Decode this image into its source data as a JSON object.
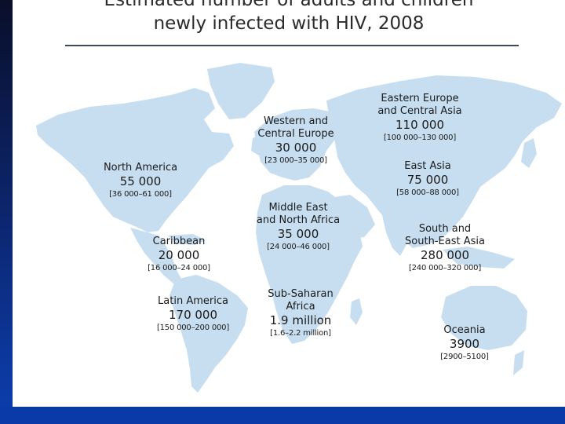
{
  "slide": {
    "title_line1": "Estimated number of adults and children",
    "title_line2": "newly infected with HIV, 2008"
  },
  "colors": {
    "background_blue": "#0b2a8a",
    "land": "#c7def0",
    "text": "#1a1a1a"
  },
  "regions": {
    "north_america": {
      "name": "North America",
      "value": "55 000",
      "range": "[36 000–61 000]"
    },
    "caribbean": {
      "name": "Caribbean",
      "value": "20 000",
      "range": "[16 000–24 000]"
    },
    "latin_america": {
      "name": "Latin America",
      "value": "170 000",
      "range": "[150 000–200 000]"
    },
    "western_europe": {
      "name_line1": "Western and",
      "name_line2": "Central Europe",
      "value": "30 000",
      "range": "[23 000–35 000]"
    },
    "middle_east": {
      "name_line1": "Middle East",
      "name_line2": "and North Africa",
      "value": "35 000",
      "range": "[24 000–46 000]"
    },
    "sub_saharan": {
      "name_line1": "Sub-Saharan",
      "name_line2": "Africa",
      "value": "1.9 million",
      "range": "[1.6–2.2 million]"
    },
    "eastern_europe": {
      "name_line1": "Eastern Europe",
      "name_line2": "and Central Asia",
      "value": "110 000",
      "range": "[100 000–130 000]"
    },
    "east_asia": {
      "name": "East Asia",
      "value": "75 000",
      "range": "[58 000–88 000]"
    },
    "south_east_asia": {
      "name_line1": "South and",
      "name_line2": "South-East Asia",
      "value": "280 000",
      "range": "[240 000–320 000]"
    },
    "oceania": {
      "name": "Oceania",
      "value": "3900",
      "range": "[2900–5100]"
    }
  }
}
